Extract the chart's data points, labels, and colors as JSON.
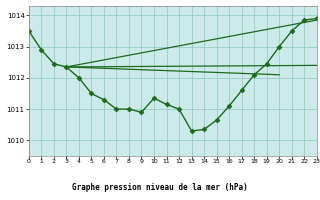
{
  "bg_color": "#cceaea",
  "plot_bg_color": "#cceaea",
  "bottom_bg_color": "#ffffff",
  "grid_color": "#99cccc",
  "line_color": "#1a6b1a",
  "title": "Graphe pression niveau de la mer (hPa)",
  "xlim": [
    0,
    23
  ],
  "ylim": [
    1009.5,
    1014.3
  ],
  "yticks": [
    1010,
    1011,
    1012,
    1013,
    1014
  ],
  "xticks": [
    0,
    1,
    2,
    3,
    4,
    5,
    6,
    7,
    8,
    9,
    10,
    11,
    12,
    13,
    14,
    15,
    16,
    17,
    18,
    19,
    20,
    21,
    22,
    23
  ],
  "series": [
    {
      "x": [
        0,
        1,
        2,
        3,
        4,
        5,
        6,
        7,
        8,
        9,
        10,
        11,
        12,
        13,
        14,
        15,
        16,
        17,
        18,
        19,
        20,
        21,
        22,
        23
      ],
      "y": [
        1013.5,
        1012.9,
        1012.45,
        1012.35,
        1012.0,
        1011.5,
        1011.3,
        1011.0,
        1011.0,
        1010.9,
        1011.35,
        1011.15,
        1011.0,
        1010.3,
        1010.35,
        1010.65,
        1011.1,
        1011.6,
        1012.1,
        1012.45,
        1013.0,
        1013.5,
        1013.85,
        1013.9
      ],
      "marker": "D",
      "markersize": 2.5,
      "linewidth": 1.0,
      "linestyle": "-",
      "has_marker": true
    },
    {
      "x": [
        3,
        23
      ],
      "y": [
        1012.35,
        1013.85
      ],
      "marker": null,
      "markersize": 0,
      "linewidth": 0.9,
      "linestyle": "-",
      "has_marker": false
    },
    {
      "x": [
        3,
        23
      ],
      "y": [
        1012.35,
        1012.4
      ],
      "marker": null,
      "markersize": 0,
      "linewidth": 0.9,
      "linestyle": "-",
      "has_marker": false
    },
    {
      "x": [
        3,
        20
      ],
      "y": [
        1012.35,
        1012.1
      ],
      "marker": null,
      "markersize": 0,
      "linewidth": 0.9,
      "linestyle": "-",
      "has_marker": false
    }
  ]
}
